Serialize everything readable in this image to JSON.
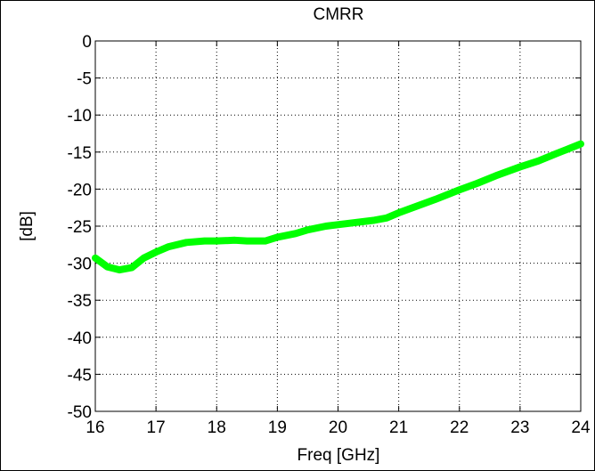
{
  "chart_data": {
    "type": "line",
    "title": "CMRR",
    "xlabel": "Freq [GHz]",
    "ylabel": "[dB]",
    "x": [
      16,
      16.2,
      16.4,
      16.6,
      16.8,
      17,
      17.2,
      17.5,
      17.8,
      18,
      18.3,
      18.5,
      18.8,
      19,
      19.3,
      19.5,
      19.8,
      20,
      20.3,
      20.6,
      20.8,
      21,
      21.3,
      21.6,
      22,
      22.3,
      22.6,
      23,
      23.3,
      23.6,
      24
    ],
    "values": [
      -29.3,
      -30.5,
      -30.9,
      -30.6,
      -29.3,
      -28.5,
      -27.8,
      -27.2,
      -27.0,
      -27.0,
      -26.9,
      -27.0,
      -27.0,
      -26.5,
      -26.0,
      -25.5,
      -25.0,
      -24.8,
      -24.5,
      -24.2,
      -23.9,
      -23.2,
      -22.3,
      -21.4,
      -20.1,
      -19.2,
      -18.2,
      -17.0,
      -16.2,
      -15.2,
      -13.9
    ],
    "color": "#00ff00",
    "xlim": [
      16,
      24
    ],
    "xticks": [
      16,
      17,
      18,
      19,
      20,
      21,
      22,
      23,
      24
    ],
    "ylim": [
      -50,
      0
    ],
    "yticks": [
      -50,
      -45,
      -40,
      -35,
      -30,
      -25,
      -20,
      -15,
      -10,
      -5,
      0
    ],
    "grid": true
  }
}
